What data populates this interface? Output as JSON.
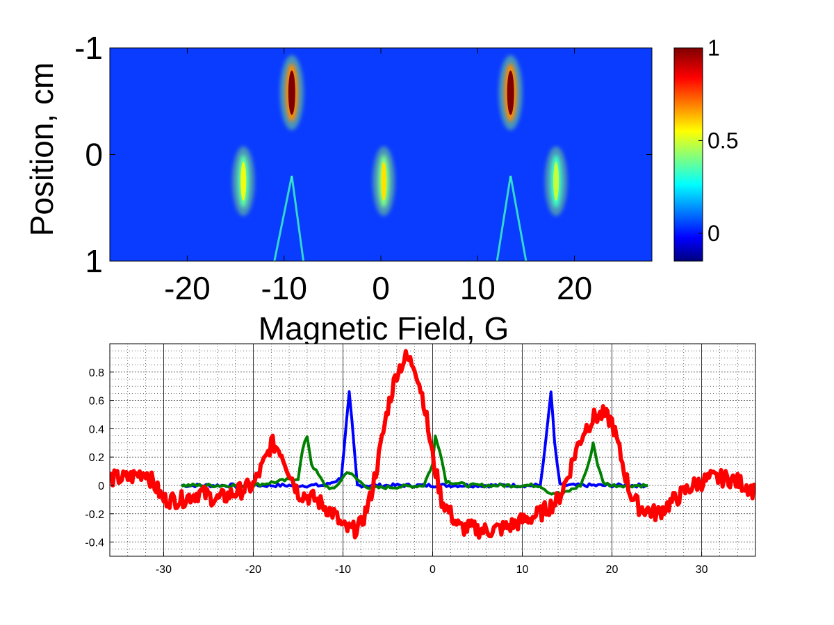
{
  "chart_data": [
    {
      "type": "heatmap",
      "title": "",
      "xlabel": "Magnetic Field, G",
      "ylabel": "Position, cm",
      "xlim": [
        -28,
        28
      ],
      "ylim": [
        -1,
        1
      ],
      "y_reversed": true,
      "xticks": [
        -20,
        -10,
        0,
        10,
        20
      ],
      "yticks": [
        -1,
        0,
        1
      ],
      "colormap": "jet",
      "colorbar": {
        "range": [
          -0.15,
          1
        ],
        "ticks": [
          0,
          0.5,
          1
        ],
        "ticklabels": [
          "0",
          "0.5",
          "1"
        ]
      },
      "background_value": 0.15,
      "features": [
        {
          "kind": "spot",
          "x": -9.2,
          "y": -0.58,
          "peak": 1.0
        },
        {
          "kind": "spot",
          "x": 13.4,
          "y": -0.58,
          "peak": 1.0
        },
        {
          "kind": "spot",
          "x": -14.2,
          "y": 0.25,
          "peak": 0.55
        },
        {
          "kind": "spot",
          "x": 0.3,
          "y": 0.25,
          "peak": 0.6
        },
        {
          "kind": "spot",
          "x": 18.1,
          "y": 0.25,
          "peak": 0.5
        },
        {
          "kind": "streak",
          "x_top": -9.2,
          "x_bottom": -11,
          "y_start": 0.2,
          "peak": 0.35
        },
        {
          "kind": "streak",
          "x_top": -9.2,
          "x_bottom": -8,
          "y_start": 0.2,
          "peak": 0.35
        },
        {
          "kind": "streak",
          "x_top": 13.4,
          "x_bottom": 12,
          "y_start": 0.2,
          "peak": 0.35
        },
        {
          "kind": "streak",
          "x_top": 13.4,
          "x_bottom": 15,
          "y_start": 0.2,
          "peak": 0.35
        }
      ]
    },
    {
      "type": "line",
      "title": "",
      "xlabel": "",
      "ylabel": "",
      "xlim": [
        -36,
        36
      ],
      "ylim": [
        -0.5,
        1
      ],
      "xticks": [
        -30,
        -20,
        -10,
        0,
        10,
        20,
        30
      ],
      "yticks": [
        -0.4,
        -0.2,
        0,
        0.2,
        0.4,
        0.6,
        0.8
      ],
      "grid": true,
      "series": [
        {
          "color": "#0000ff",
          "x": [
            -28,
            -12,
            -10.2,
            -9.6,
            -9.3,
            -9,
            -8.4,
            12,
            12.6,
            13.2,
            13.6,
            14.2,
            24
          ],
          "y": [
            0,
            0,
            0.05,
            0.45,
            0.65,
            0.45,
            0.0,
            0.0,
            0.3,
            0.66,
            0.3,
            0.0,
            0.0
          ]
        },
        {
          "color": "#008000",
          "x": [
            -28,
            -20,
            -15,
            -14.5,
            -14,
            -13.5,
            -12,
            -11,
            -9.5,
            -8,
            -7,
            -1,
            0,
            0.3,
            0.8,
            1.5,
            4,
            12,
            13,
            14.5,
            16.5,
            17.4,
            17.9,
            18.4,
            19,
            20,
            24
          ],
          "y": [
            0,
            0,
            0.05,
            0.25,
            0.35,
            0.15,
            0,
            -0.03,
            0.1,
            0.02,
            -0.02,
            0,
            0.15,
            0.35,
            0.25,
            0.03,
            0,
            0,
            -0.05,
            -0.06,
            0,
            0.15,
            0.3,
            0.15,
            0.02,
            0,
            0
          ]
        },
        {
          "color": "#ff0000",
          "x": [
            -36,
            -34,
            -32,
            -30,
            -28,
            -26,
            -24,
            -22,
            -20,
            -18.5,
            -18,
            -17,
            -16,
            -15,
            -13,
            -12,
            -11,
            -10,
            -9,
            -8,
            -7,
            -6,
            -5,
            -4,
            -3,
            -2,
            -1,
            0,
            1,
            2,
            3,
            4,
            6,
            8,
            10,
            12,
            14,
            15,
            16,
            17,
            18,
            19,
            20,
            21,
            22,
            23,
            25,
            27,
            29,
            31,
            33,
            35,
            36
          ],
          "y": [
            0.05,
            0.05,
            0.1,
            -0.1,
            -0.1,
            -0.05,
            -0.1,
            -0.05,
            0,
            0.2,
            0.3,
            0.25,
            0.1,
            -0.05,
            -0.1,
            -0.15,
            -0.2,
            -0.3,
            -0.32,
            -0.28,
            -0.1,
            0.2,
            0.55,
            0.8,
            0.9,
            0.85,
            0.6,
            0.2,
            -0.1,
            -0.2,
            -0.3,
            -0.3,
            -0.32,
            -0.3,
            -0.25,
            -0.2,
            -0.1,
            0.05,
            0.25,
            0.4,
            0.48,
            0.5,
            0.45,
            0.2,
            -0.05,
            -0.15,
            -0.2,
            -0.1,
            0.0,
            0.05,
            0.05,
            0.0,
            -0.05
          ]
        }
      ]
    }
  ]
}
